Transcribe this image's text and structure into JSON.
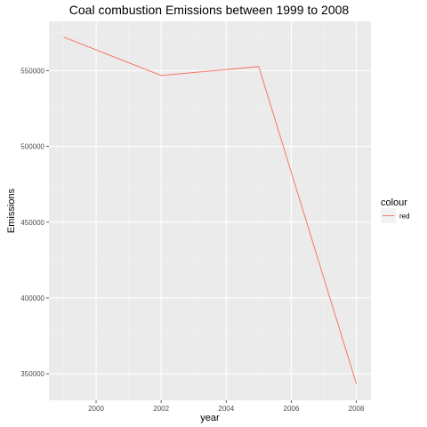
{
  "chart_data": {
    "type": "line",
    "title": "Coal combustion Emissions between 1999 to 2008",
    "xlabel": "year",
    "ylabel": "Emissions",
    "xlim": [
      1998.55,
      2008.45
    ],
    "ylim": [
      332500,
      582500
    ],
    "x_ticks": [
      2000,
      2002,
      2004,
      2006,
      2008
    ],
    "x_tick_labels": [
      "2000",
      "2002",
      "2004",
      "2006",
      "2008"
    ],
    "y_ticks": [
      350000,
      400000,
      450000,
      500000,
      550000
    ],
    "y_tick_labels": [
      "350000",
      "400000",
      "450000",
      "500000",
      "550000"
    ],
    "grid": true,
    "legend": {
      "title": "colour",
      "position": "right",
      "entries": [
        {
          "label": "red",
          "color": "#F8766D"
        }
      ]
    },
    "series": [
      {
        "name": "red",
        "color": "#F8766D",
        "x": [
          1999,
          2002,
          2005,
          2008
        ],
        "y": [
          572126,
          546789,
          552675,
          343432
        ]
      }
    ],
    "colors": {
      "panel_background": "#EBEBEB",
      "grid_major": "#FFFFFF",
      "line": "#F8766D"
    }
  }
}
